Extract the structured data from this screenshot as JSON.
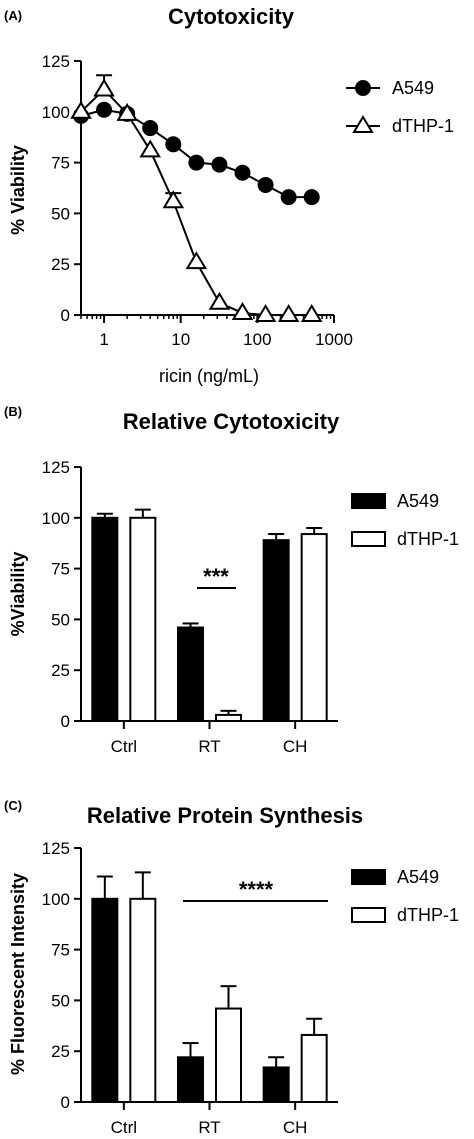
{
  "chart_data": [
    {
      "panel": "(A)",
      "type": "line",
      "title": "Cytotoxicity",
      "xlabel": "ricin (ng/mL)",
      "ylabel": "% Viability",
      "xscale": "log",
      "xlim": [
        0.5,
        1000
      ],
      "ylim": [
        0,
        125
      ],
      "xticks": [
        "1",
        "10",
        "100",
        "1000"
      ],
      "yticks": [
        "0",
        "25",
        "50",
        "75",
        "100",
        "125"
      ],
      "legend_position": "top-right",
      "series": [
        {
          "name": "A549",
          "marker": "filled-circle",
          "x": [
            0.5,
            1,
            2,
            4,
            8,
            16,
            32,
            64,
            128,
            256,
            512
          ],
          "y": [
            98,
            101,
            99,
            92,
            84,
            75,
            74,
            70,
            64,
            58,
            58
          ]
        },
        {
          "name": "dTHP-1",
          "marker": "open-triangle",
          "x": [
            0.5,
            1,
            2,
            4,
            8,
            16,
            32,
            64,
            128,
            256,
            512
          ],
          "y": [
            100,
            111,
            99,
            81,
            56,
            26,
            6,
            1,
            0,
            0,
            0
          ],
          "error": [
            0,
            7,
            0,
            0,
            4,
            0,
            0,
            0,
            0,
            0,
            0
          ]
        }
      ]
    },
    {
      "panel": "(B)",
      "type": "bar",
      "title": "Relative Cytotoxicity",
      "xlabel": "",
      "ylabel": "%Viability",
      "ylim": [
        0,
        125
      ],
      "yticks": [
        "0",
        "25",
        "50",
        "75",
        "100",
        "125"
      ],
      "categories": [
        "Ctrl",
        "RT",
        "CH"
      ],
      "legend_position": "top-right",
      "annotation": "***",
      "series": [
        {
          "name": "A549",
          "fill": "black",
          "values": [
            100,
            46,
            89
          ],
          "error": [
            2,
            2,
            3
          ]
        },
        {
          "name": "dTHP-1",
          "fill": "white",
          "values": [
            100,
            3,
            92
          ],
          "error": [
            4,
            2,
            3
          ]
        }
      ]
    },
    {
      "panel": "(C)",
      "type": "bar",
      "title": "Relative Protein Synthesis",
      "xlabel": "",
      "ylabel": "% Fluorescent Intensity",
      "ylim": [
        0,
        125
      ],
      "yticks": [
        "0",
        "25",
        "50",
        "75",
        "100",
        "125"
      ],
      "categories": [
        "Ctrl",
        "RT",
        "CH"
      ],
      "legend_position": "top-right",
      "annotation": "****",
      "series": [
        {
          "name": "A549",
          "fill": "black",
          "values": [
            100,
            22,
            17
          ],
          "error": [
            11,
            7,
            5
          ]
        },
        {
          "name": "dTHP-1",
          "fill": "white",
          "values": [
            100,
            46,
            33
          ],
          "error": [
            13,
            11,
            8
          ]
        }
      ]
    }
  ]
}
